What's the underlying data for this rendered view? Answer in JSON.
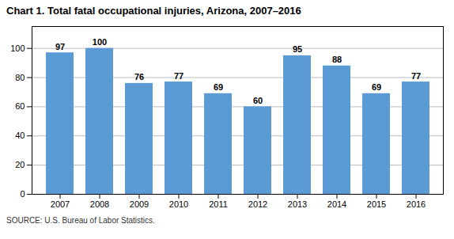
{
  "chart_data": {
    "type": "bar",
    "title": "Chart 1. Total fatal occupational injuries, Arizona, 2007–2016",
    "source": "SOURCE: U.S. Bureau of Labor Statistics.",
    "categories": [
      "2007",
      "2008",
      "2009",
      "2010",
      "2011",
      "2012",
      "2013",
      "2014",
      "2015",
      "2016"
    ],
    "values": [
      97,
      100,
      76,
      77,
      69,
      60,
      95,
      88,
      69,
      77
    ],
    "color": "#5b9bd5",
    "ylim": [
      0,
      115
    ],
    "yticks": [
      0,
      20,
      40,
      60,
      80,
      100
    ],
    "grid": true,
    "data_labels": true
  }
}
